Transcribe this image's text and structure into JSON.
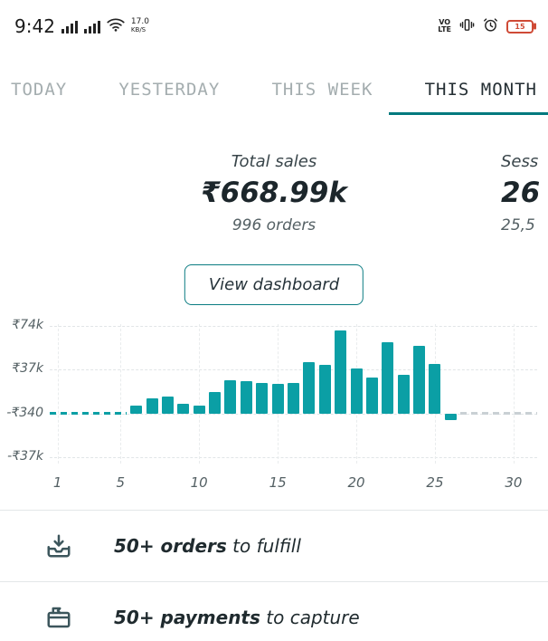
{
  "status_bar": {
    "time": "9:42",
    "network_speed": "17.0",
    "network_speed_unit": "KB/S",
    "volte_line1": "VO",
    "volte_line2": "LTE",
    "battery_level": "15"
  },
  "tabs": [
    {
      "label": "TODAY",
      "active": false
    },
    {
      "label": "YESTERDAY",
      "active": false
    },
    {
      "label": "THIS WEEK",
      "active": false
    },
    {
      "label": "THIS MONTH",
      "active": true
    }
  ],
  "stats": {
    "primary": {
      "label": "Total sales",
      "value": "₹668.99k",
      "sub": "996 orders"
    },
    "secondary_clipped": {
      "label": "Sess",
      "value": "26",
      "sub": "25,5"
    }
  },
  "dashboard_button_label": "View dashboard",
  "chart_data": {
    "type": "bar",
    "title": "",
    "x_unit": "day of month",
    "days": 31,
    "values_thousands": [
      null,
      null,
      null,
      null,
      null,
      7,
      13,
      14,
      8,
      7,
      18,
      28,
      27,
      26,
      25,
      26,
      43,
      41,
      70,
      38,
      30,
      60,
      33,
      57,
      42,
      -6,
      null,
      null,
      null,
      null,
      null
    ],
    "yticks": [
      {
        "label": "₹74k",
        "value": 74
      },
      {
        "label": "₹37k",
        "value": 37
      },
      {
        "label": "-₹340",
        "value": -0.34
      },
      {
        "label": "-₹37k",
        "value": -37
      }
    ],
    "xticks": [
      1,
      5,
      10,
      15,
      20,
      25,
      30
    ],
    "ylim_thousands": [
      -47,
      84
    ],
    "grid": true,
    "legend": "none",
    "bar_color": "#0b9fa5",
    "zero_line_dash_past_color": "#0b9fa5",
    "zero_line_dash_future_color": "#c9d0d4",
    "currency": "₹"
  },
  "tasks": [
    {
      "icon": "orders-icon",
      "bold": "50+ orders",
      "rest": " to fulfill"
    },
    {
      "icon": "payments-icon",
      "bold": "50+ payments",
      "rest": " to capture"
    }
  ],
  "colors": {
    "accent": "#00797e",
    "bar": "#0b9fa5",
    "inactive_tab": "#a4adaf",
    "text_dark": "#1f2a2e",
    "battery_warning": "#cf4a36"
  }
}
